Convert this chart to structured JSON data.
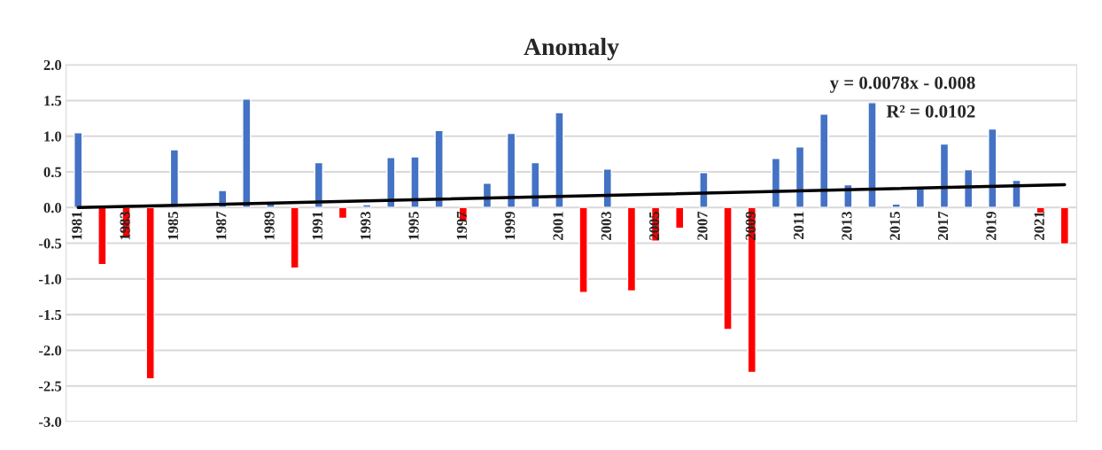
{
  "chart_data": {
    "type": "bar",
    "title": "Anomaly",
    "x": [
      1981,
      1982,
      1983,
      1984,
      1985,
      1986,
      1987,
      1988,
      1989,
      1990,
      1991,
      1992,
      1993,
      1994,
      1995,
      1996,
      1997,
      1998,
      1999,
      2000,
      2001,
      2002,
      2003,
      2004,
      2005,
      2006,
      2007,
      2008,
      2009,
      2010,
      2011,
      2012,
      2013,
      2014,
      2015,
      2016,
      2017,
      2018,
      2019,
      2020,
      2021,
      2022
    ],
    "series": [
      {
        "values": [
          1.05,
          -0.8,
          -0.41,
          -2.4,
          0.81,
          null,
          0.24,
          1.52,
          0.05,
          -0.85,
          0.63,
          -0.15,
          0.04,
          0.7,
          0.71,
          1.08,
          -0.2,
          0.34,
          1.04,
          0.63,
          1.33,
          -1.19,
          0.54,
          -1.17,
          -0.47,
          -0.29,
          0.49,
          -1.71,
          -2.31,
          0.69,
          0.85,
          1.31,
          0.32,
          1.47,
          0.05,
          0.27,
          0.89,
          0.53,
          1.1,
          0.38,
          -0.08,
          -0.51
        ],
        "colors": [
          "#4472c4",
          "#ff0000",
          "#ff0000",
          "#ff0000",
          "#4472c4",
          "#4472c4",
          "#4472c4",
          "#4472c4",
          "#4472c4",
          "#ff0000",
          "#4472c4",
          "#ff0000",
          "#4472c4",
          "#4472c4",
          "#4472c4",
          "#4472c4",
          "#ff0000",
          "#4472c4",
          "#4472c4",
          "#4472c4",
          "#4472c4",
          "#ff0000",
          "#4472c4",
          "#ff0000",
          "#ff0000",
          "#ff0000",
          "#4472c4",
          "#ff0000",
          "#ff0000",
          "#4472c4",
          "#4472c4",
          "#4472c4",
          "#4472c4",
          "#4472c4",
          "#4472c4",
          "#4472c4",
          "#4472c4",
          "#4472c4",
          "#4472c4",
          "#4472c4",
          "#ff0000",
          "#ff0000"
        ]
      },
      {
        "type": "line",
        "x": [
          1981,
          2022
        ],
        "values": [
          0.0,
          0.32
        ],
        "color": "#000000"
      }
    ],
    "annotations": [
      "y = 0.0078x - 0.008",
      "R² = 0.0102"
    ],
    "xlim": [
      1980.5,
      2022.5
    ],
    "xticks": [
      1981,
      1983,
      1985,
      1987,
      1989,
      1991,
      1993,
      1995,
      1997,
      1999,
      2001,
      2003,
      2005,
      2007,
      2009,
      2011,
      2013,
      2015,
      2017,
      2019,
      2021
    ],
    "ylim": [
      -3.0,
      2.0
    ],
    "yticks": [
      {
        "value": -3.0,
        "label": "-3.0"
      },
      {
        "value": -2.5,
        "label": "-2.5"
      },
      {
        "value": -2.0,
        "label": "-2.0"
      },
      {
        "value": -1.5,
        "label": "-1.5"
      },
      {
        "value": -1.0,
        "label": "-1.0"
      },
      {
        "value": -0.5,
        "label": "-0.5"
      },
      {
        "value": 0.0,
        "label": "0.0"
      },
      {
        "value": 0.5,
        "label": "0.5"
      },
      {
        "value": 1.0,
        "label": "1.0"
      },
      {
        "value": 1.5,
        "label": "1.5"
      },
      {
        "value": 2.0,
        "label": "2.0"
      }
    ],
    "grid": "y"
  }
}
